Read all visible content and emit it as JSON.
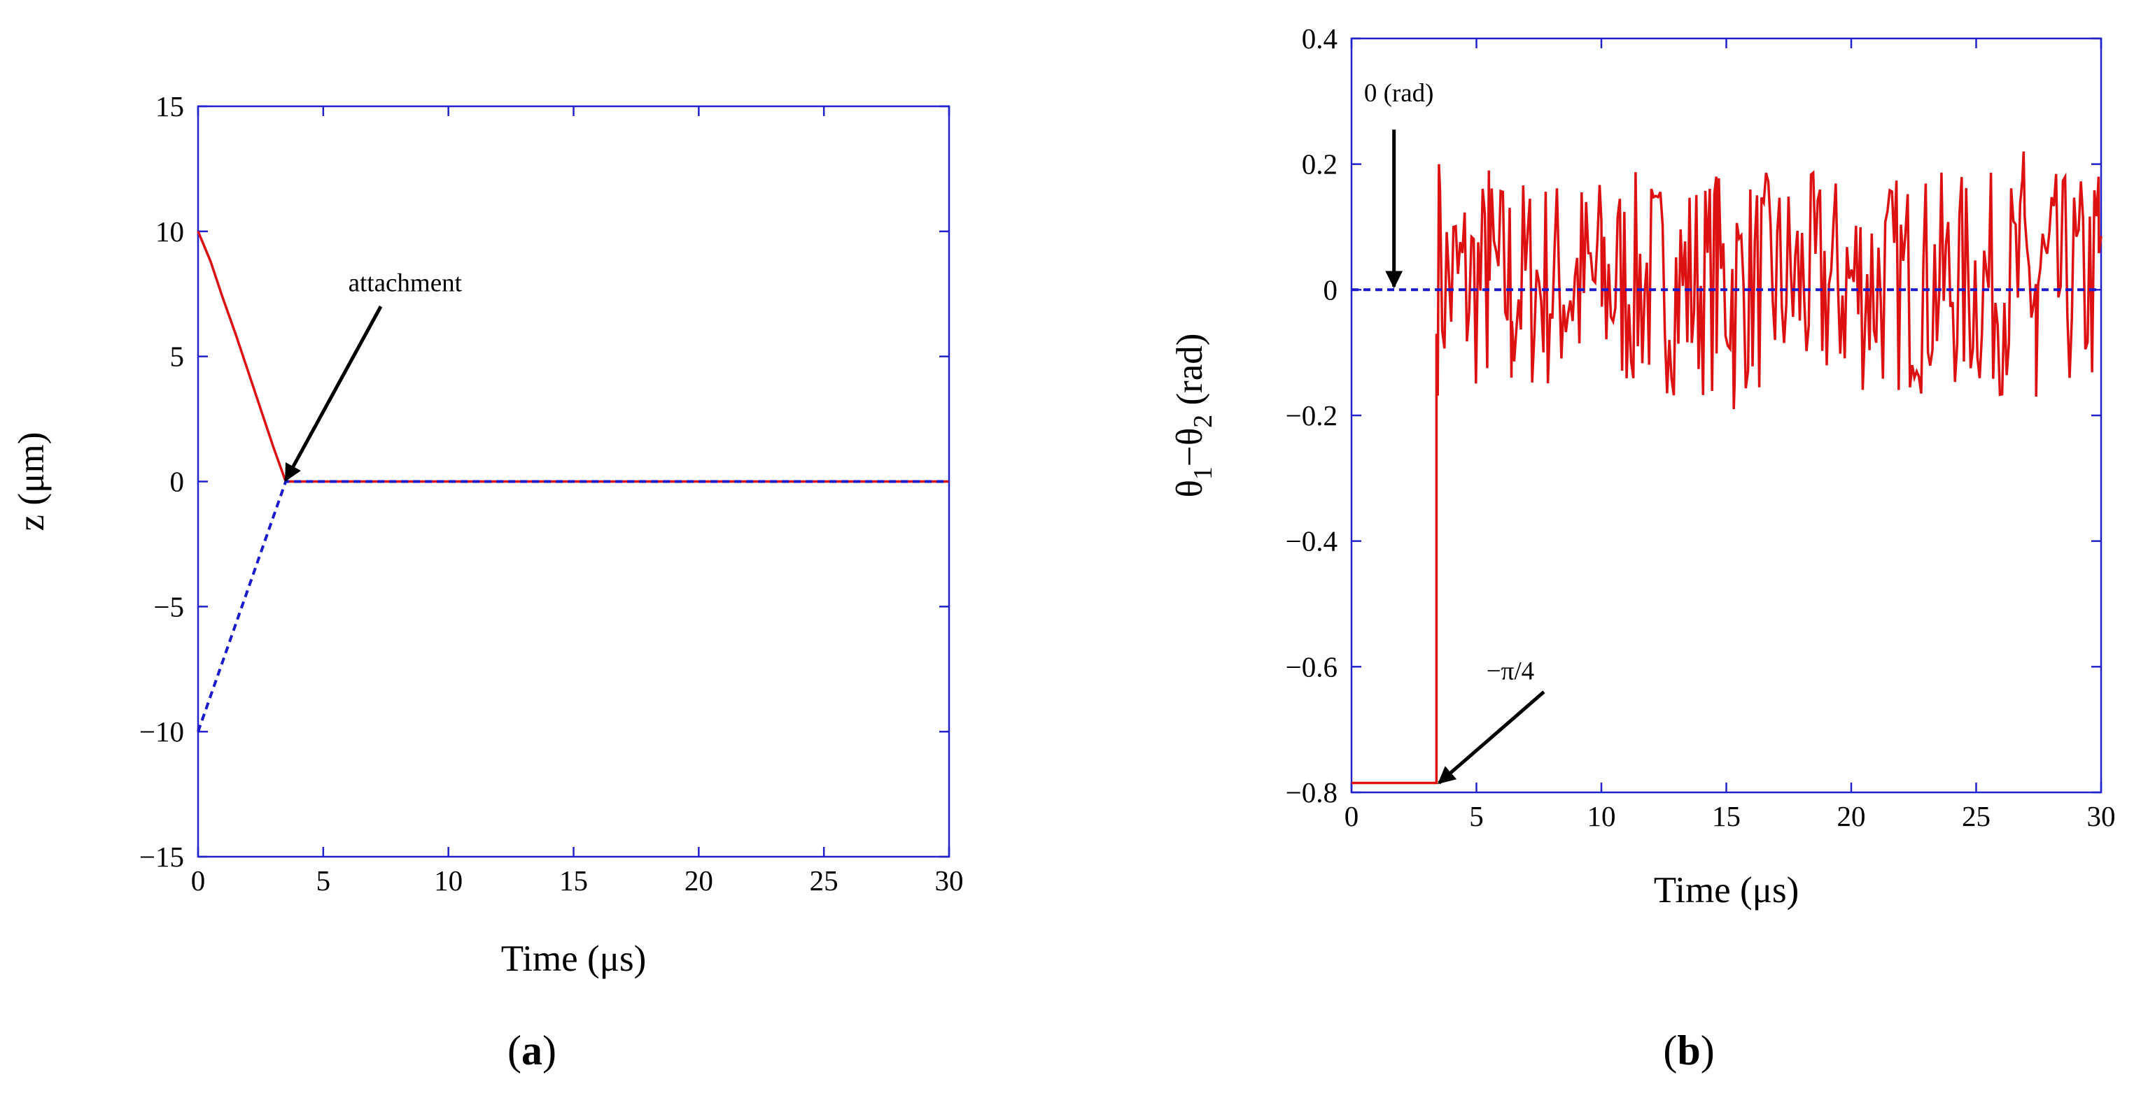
{
  "colors": {
    "frame": "#2222cc",
    "red": "#dd1111",
    "blue": "#1a1acc",
    "arrow": "#000000"
  },
  "chart_data": [
    {
      "id": "a",
      "type": "line",
      "panel_label": "(a)",
      "panel_label_bold": "a",
      "xlabel": "Time (μs)",
      "ylabel": "z (μm)",
      "xlim": [
        0,
        30
      ],
      "ylim": [
        -15,
        15
      ],
      "xticks": [
        0,
        5,
        10,
        15,
        20,
        25,
        30
      ],
      "yticks": [
        -15,
        -10,
        -5,
        0,
        5,
        10,
        15
      ],
      "ytick_labels": [
        "−15",
        "−10",
        "−5",
        "0",
        "5",
        "10",
        "15"
      ],
      "series": [
        {
          "name": "red",
          "style": "solid",
          "x": [
            0,
            0.5,
            1.0,
            1.5,
            2.0,
            2.5,
            3.0,
            3.5,
            30
          ],
          "y": [
            10,
            8.8,
            7.3,
            5.9,
            4.4,
            2.9,
            1.4,
            0,
            0
          ]
        },
        {
          "name": "blue",
          "style": "dashed",
          "x": [
            0,
            3.5,
            30
          ],
          "y": [
            -10,
            0,
            0
          ]
        }
      ],
      "annotations": [
        {
          "text": "attachment",
          "text_x": 6.0,
          "text_y": 7.6,
          "from_x": 7.3,
          "from_y": 7.0,
          "to_x": 3.5,
          "to_y": 0.05
        }
      ]
    },
    {
      "id": "b",
      "type": "line",
      "panel_label": "(b)",
      "panel_label_bold": "b",
      "xlabel": "Time (μs)",
      "ylabel": "θ1−θ2 (rad)",
      "ylabel_parts": [
        "θ",
        "1",
        "−θ",
        "2",
        " (rad)"
      ],
      "xlim": [
        0,
        30
      ],
      "ylim": [
        -0.8,
        0.4
      ],
      "xticks": [
        0,
        5,
        10,
        15,
        20,
        25,
        30
      ],
      "yticks": [
        -0.8,
        -0.6,
        -0.4,
        -0.2,
        0,
        0.2,
        0.4
      ],
      "ytick_labels": [
        "−0.8",
        "−0.6",
        "−0.4",
        "−0.2",
        "0",
        "0.2",
        "0.4"
      ],
      "series": [
        {
          "name": "red",
          "style": "solid",
          "kind": "step_then_noise",
          "step_start": -0.785,
          "step_time": 3.4,
          "noise_start": 3.45,
          "noise_end": 30,
          "noise_step": 0.09,
          "noise_mean": 0.01,
          "noise_amp": 0.21,
          "x": [
            0,
            3.4,
            3.4,
            3.5,
            5.5,
            6.4,
            10.0,
            14.6,
            15.3,
            26.9,
            27.4,
            29.9
          ],
          "y": [
            -0.785,
            -0.785,
            -0.07,
            0.2,
            0.19,
            -0.14,
            0.11,
            0.18,
            -0.19,
            0.22,
            -0.17,
            0.18
          ]
        },
        {
          "name": "blue",
          "style": "dashed",
          "x": [
            0,
            30
          ],
          "y": [
            0,
            0
          ]
        }
      ],
      "annotations": [
        {
          "text": "0 (rad)",
          "text_x": 0.5,
          "text_y": 0.3,
          "from_x": 1.7,
          "from_y": 0.255,
          "to_x": 1.7,
          "to_y": 0.005
        },
        {
          "text": "−π/4",
          "text_x": 5.4,
          "text_y": -0.62,
          "from_x": 7.7,
          "from_y": -0.64,
          "to_x": 3.5,
          "to_y": -0.785
        }
      ]
    }
  ]
}
